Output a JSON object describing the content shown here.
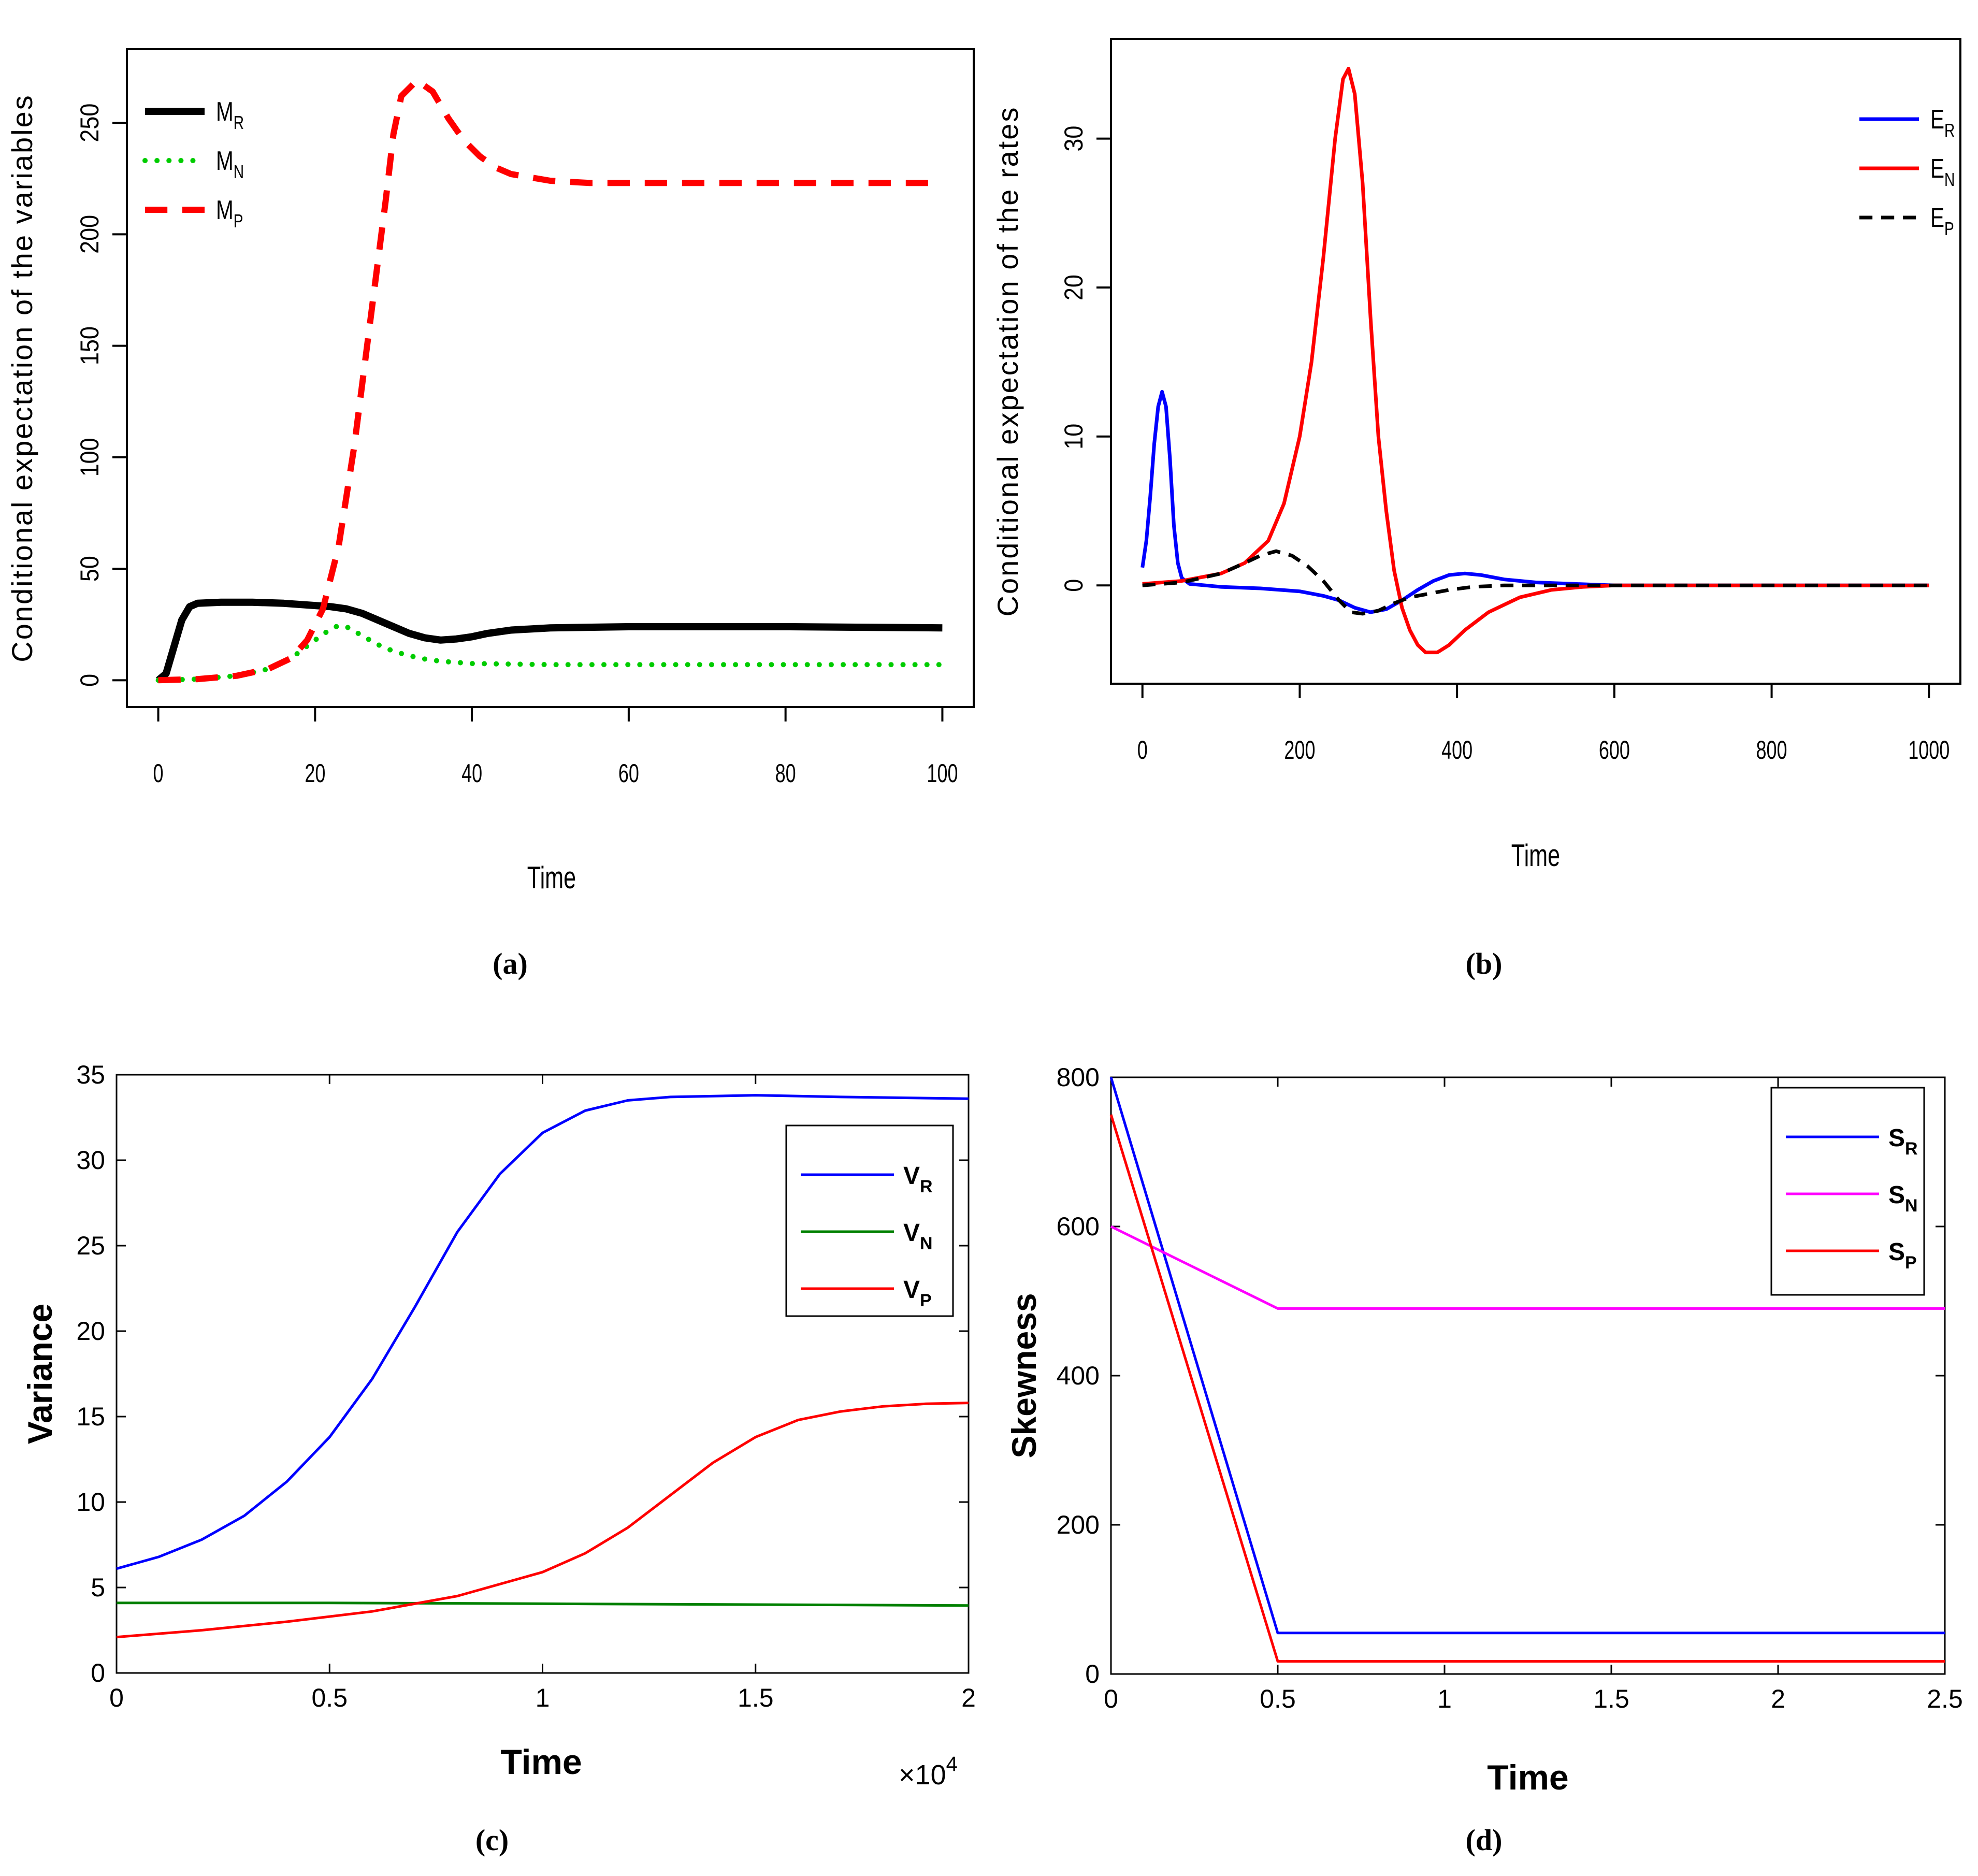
{
  "colors": {
    "black": "#000000",
    "blue": "#0000ff",
    "red": "#ff0000",
    "green": "#00cc00",
    "darkgreen": "#008000",
    "magenta": "#ff00ff"
  },
  "chart_data": [
    {
      "id": "a",
      "type": "line",
      "caption": "(a)",
      "xlabel": "Time",
      "ylabel": "Conditional expectation of the variables",
      "xlim": [
        -4,
        104
      ],
      "ylim": [
        -12,
        283
      ],
      "xticks": [
        0,
        20,
        40,
        60,
        80,
        100
      ],
      "yticks": [
        0,
        50,
        100,
        150,
        200,
        250
      ],
      "series": [
        {
          "name": "M",
          "sub": "R",
          "color": "#000000",
          "dash": "solid",
          "width": 14,
          "points": [
            [
              0,
              0
            ],
            [
              1,
              3
            ],
            [
              2,
              15
            ],
            [
              3,
              27
            ],
            [
              4,
              33
            ],
            [
              5,
              34.5
            ],
            [
              8,
              35
            ],
            [
              12,
              35
            ],
            [
              16,
              34.5
            ],
            [
              20,
              33.5
            ],
            [
              22,
              33
            ],
            [
              24,
              32
            ],
            [
              26,
              30
            ],
            [
              28,
              27
            ],
            [
              30,
              24
            ],
            [
              32,
              21
            ],
            [
              34,
              19
            ],
            [
              36,
              18
            ],
            [
              38,
              18.5
            ],
            [
              40,
              19.5
            ],
            [
              42,
              21
            ],
            [
              45,
              22.5
            ],
            [
              50,
              23.5
            ],
            [
              60,
              24
            ],
            [
              80,
              24
            ],
            [
              100,
              23.5
            ]
          ]
        },
        {
          "name": "M",
          "sub": "N",
          "color": "#00cc00",
          "dash": "dot",
          "width": 10,
          "points": [
            [
              0,
              0
            ],
            [
              5,
              0.5
            ],
            [
              10,
              2
            ],
            [
              14,
              5
            ],
            [
              17,
              10
            ],
            [
              20,
              18
            ],
            [
              22,
              23
            ],
            [
              23,
              24.5
            ],
            [
              24,
              24
            ],
            [
              26,
              20
            ],
            [
              28,
              16
            ],
            [
              30,
              13
            ],
            [
              32,
              11
            ],
            [
              34,
              9.5
            ],
            [
              36,
              8.5
            ],
            [
              40,
              7.5
            ],
            [
              50,
              7
            ],
            [
              60,
              7
            ],
            [
              80,
              7
            ],
            [
              100,
              7
            ]
          ]
        },
        {
          "name": "M",
          "sub": "P",
          "color": "#ff0000",
          "dash": "dash",
          "width": 12,
          "points": [
            [
              0,
              0
            ],
            [
              5,
              0.5
            ],
            [
              10,
              2
            ],
            [
              14,
              5
            ],
            [
              17,
              10
            ],
            [
              19,
              18
            ],
            [
              21,
              32
            ],
            [
              23,
              60
            ],
            [
              25,
              105
            ],
            [
              27,
              160
            ],
            [
              29,
              215
            ],
            [
              30,
              245
            ],
            [
              31,
              262
            ],
            [
              33,
              269
            ],
            [
              35,
              264
            ],
            [
              37,
              252
            ],
            [
              39,
              242
            ],
            [
              41,
              235
            ],
            [
              43,
              230
            ],
            [
              45,
              227
            ],
            [
              50,
              224
            ],
            [
              55,
              223
            ],
            [
              60,
              223
            ],
            [
              80,
              223
            ],
            [
              100,
              223
            ]
          ]
        }
      ],
      "legend": {
        "placement": "top-left"
      }
    },
    {
      "id": "b",
      "type": "line",
      "caption": "(b)",
      "xlabel": "Time",
      "ylabel": "Conditional expectation of the rates",
      "xlim": [
        -40,
        1040
      ],
      "ylim": [
        -6.6,
        36.7
      ],
      "xticks": [
        0,
        200,
        400,
        600,
        800,
        1000
      ],
      "yticks": [
        0,
        10,
        20,
        30
      ],
      "series": [
        {
          "name": "E",
          "sub": "R",
          "color": "#0000ff",
          "dash": "solid",
          "width": 7,
          "points": [
            [
              0,
              1.2
            ],
            [
              5,
              3
            ],
            [
              10,
              6
            ],
            [
              15,
              9.5
            ],
            [
              20,
              12
            ],
            [
              25,
              13
            ],
            [
              30,
              12
            ],
            [
              35,
              8.5
            ],
            [
              40,
              4
            ],
            [
              45,
              1.5
            ],
            [
              50,
              0.5
            ],
            [
              60,
              0.1
            ],
            [
              80,
              0
            ],
            [
              100,
              -0.1
            ],
            [
              150,
              -0.2
            ],
            [
              200,
              -0.4
            ],
            [
              230,
              -0.7
            ],
            [
              250,
              -1
            ],
            [
              270,
              -1.5
            ],
            [
              290,
              -1.8
            ],
            [
              310,
              -1.6
            ],
            [
              330,
              -1
            ],
            [
              350,
              -0.3
            ],
            [
              370,
              0.3
            ],
            [
              390,
              0.7
            ],
            [
              410,
              0.8
            ],
            [
              430,
              0.7
            ],
            [
              460,
              0.4
            ],
            [
              500,
              0.2
            ],
            [
              550,
              0.1
            ],
            [
              600,
              0
            ],
            [
              800,
              0
            ],
            [
              1000,
              0
            ]
          ]
        },
        {
          "name": "E",
          "sub": "N",
          "color": "#ff0000",
          "dash": "solid",
          "width": 7,
          "points": [
            [
              0,
              0.1
            ],
            [
              50,
              0.3
            ],
            [
              100,
              0.8
            ],
            [
              130,
              1.5
            ],
            [
              160,
              3
            ],
            [
              180,
              5.5
            ],
            [
              200,
              10
            ],
            [
              215,
              15
            ],
            [
              230,
              22
            ],
            [
              245,
              30
            ],
            [
              255,
              34
            ],
            [
              262,
              34.7
            ],
            [
              270,
              33
            ],
            [
              280,
              27
            ],
            [
              290,
              18
            ],
            [
              300,
              10
            ],
            [
              310,
              5
            ],
            [
              320,
              1
            ],
            [
              330,
              -1.5
            ],
            [
              340,
              -3
            ],
            [
              350,
              -4
            ],
            [
              360,
              -4.5
            ],
            [
              375,
              -4.5
            ],
            [
              390,
              -4
            ],
            [
              410,
              -3
            ],
            [
              440,
              -1.8
            ],
            [
              480,
              -0.8
            ],
            [
              520,
              -0.3
            ],
            [
              560,
              -0.1
            ],
            [
              600,
              0
            ],
            [
              800,
              0
            ],
            [
              1000,
              0
            ]
          ]
        },
        {
          "name": "E",
          "sub": "P",
          "color": "#000000",
          "dash": "dash",
          "width": 7,
          "points": [
            [
              0,
              0
            ],
            [
              50,
              0.2
            ],
            [
              100,
              0.8
            ],
            [
              130,
              1.5
            ],
            [
              150,
              2
            ],
            [
              170,
              2.3
            ],
            [
              190,
              2
            ],
            [
              210,
              1.3
            ],
            [
              230,
              0.3
            ],
            [
              250,
              -1
            ],
            [
              265,
              -1.8
            ],
            [
              280,
              -1.9
            ],
            [
              300,
              -1.7
            ],
            [
              320,
              -1.2
            ],
            [
              340,
              -0.8
            ],
            [
              360,
              -0.6
            ],
            [
              390,
              -0.3
            ],
            [
              420,
              -0.1
            ],
            [
              460,
              0
            ],
            [
              1000,
              0
            ]
          ]
        }
      ],
      "legend": {
        "placement": "top-right"
      }
    },
    {
      "id": "c",
      "type": "line",
      "caption": "(c)",
      "xlabel": "Time",
      "ylabel": "Variance",
      "xscale_label": "×10",
      "xscale_exp": "4",
      "xlim": [
        0,
        2
      ],
      "ylim": [
        0,
        35
      ],
      "xticks": [
        0,
        0.5,
        1,
        1.5,
        2
      ],
      "yticks": [
        0,
        5,
        10,
        15,
        20,
        25,
        30,
        35
      ],
      "series": [
        {
          "name": "V",
          "sub": "R",
          "color": "#0000ff",
          "dash": "solid",
          "width": 5,
          "points": [
            [
              0,
              6.1
            ],
            [
              0.1,
              6.8
            ],
            [
              0.2,
              7.8
            ],
            [
              0.3,
              9.2
            ],
            [
              0.4,
              11.2
            ],
            [
              0.5,
              13.8
            ],
            [
              0.6,
              17.2
            ],
            [
              0.7,
              21.4
            ],
            [
              0.8,
              25.8
            ],
            [
              0.9,
              29.2
            ],
            [
              1,
              31.6
            ],
            [
              1.1,
              32.9
            ],
            [
              1.2,
              33.5
            ],
            [
              1.3,
              33.7
            ],
            [
              1.5,
              33.8
            ],
            [
              1.7,
              33.7
            ],
            [
              2,
              33.6
            ]
          ]
        },
        {
          "name": "V",
          "sub": "N",
          "color": "#008000",
          "dash": "solid",
          "width": 5,
          "points": [
            [
              0,
              4.1
            ],
            [
              0.5,
              4.1
            ],
            [
              1,
              4.05
            ],
            [
              1.5,
              4.0
            ],
            [
              2,
              3.95
            ]
          ]
        },
        {
          "name": "V",
          "sub": "P",
          "color": "#ff0000",
          "dash": "solid",
          "width": 5,
          "points": [
            [
              0,
              2.1
            ],
            [
              0.2,
              2.5
            ],
            [
              0.4,
              3.0
            ],
            [
              0.6,
              3.6
            ],
            [
              0.8,
              4.5
            ],
            [
              1,
              5.9
            ],
            [
              1.1,
              7
            ],
            [
              1.2,
              8.5
            ],
            [
              1.3,
              10.4
            ],
            [
              1.4,
              12.3
            ],
            [
              1.5,
              13.8
            ],
            [
              1.6,
              14.8
            ],
            [
              1.7,
              15.3
            ],
            [
              1.8,
              15.6
            ],
            [
              1.9,
              15.75
            ],
            [
              2,
              15.8
            ]
          ]
        }
      ],
      "legend": {
        "placement": "top-right"
      }
    },
    {
      "id": "d",
      "type": "line",
      "caption": "(d)",
      "xlabel": "Time",
      "ylabel": "Skewness",
      "xlim": [
        0,
        2.5
      ],
      "ylim": [
        0,
        800
      ],
      "xticks": [
        0,
        0.5,
        1,
        1.5,
        2,
        2.5
      ],
      "yticks": [
        0,
        200,
        400,
        600,
        800
      ],
      "series": [
        {
          "name": "S",
          "sub": "R",
          "color": "#0000ff",
          "dash": "solid",
          "width": 5,
          "points": [
            [
              0,
              800
            ],
            [
              0.5,
              55
            ],
            [
              2.5,
              55
            ]
          ]
        },
        {
          "name": "S",
          "sub": "N",
          "color": "#ff00ff",
          "dash": "solid",
          "width": 5,
          "points": [
            [
              0,
              600
            ],
            [
              0.5,
              490
            ],
            [
              2.5,
              490
            ]
          ]
        },
        {
          "name": "S",
          "sub": "P",
          "color": "#ff0000",
          "dash": "solid",
          "width": 5,
          "points": [
            [
              0,
              750
            ],
            [
              0.5,
              17
            ],
            [
              2.5,
              17
            ]
          ]
        }
      ],
      "legend": {
        "placement": "top-right"
      }
    }
  ]
}
